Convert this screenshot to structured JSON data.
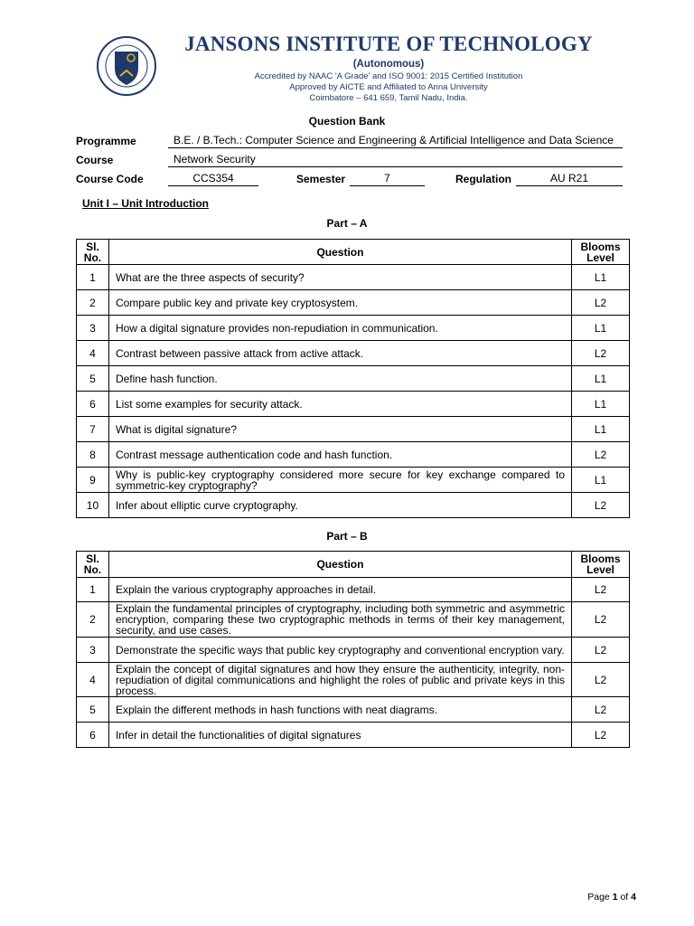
{
  "header": {
    "institution": "JANSONS INSTITUTE OF TECHNOLOGY",
    "autonomous": "(Autonomous)",
    "accreditation": "Accredited by NAAC 'A Grade' and ISO 9001: 2015 Certified Institution",
    "approval": "Approved by AICTE and Affiliated to Anna University",
    "address": "Coimbatore – 641 659, Tamil Nadu, India.",
    "logo_text": "JANSONS INSTITUTE OF TECHNOLOGY · Holistic Learning",
    "brand_color": "#1e3a6b"
  },
  "doc_title": "Question Bank",
  "info": {
    "programme_label": "Programme",
    "programme": "B.E. / B.Tech.: Computer Science and Engineering &  Artificial Intelligence and Data Science",
    "course_label": "Course",
    "course": "Network Security",
    "code_label": "Course Code",
    "code": "CCS354",
    "semester_label": "Semester",
    "semester": "7",
    "regulation_label": "Regulation",
    "regulation": "AU R21"
  },
  "unit": "Unit I – Unit Introduction",
  "columns": {
    "sl": "Sl. No.",
    "question": "Question",
    "blooms": "Blooms Level"
  },
  "part_a": {
    "title": "Part – A",
    "rows": [
      [
        "1",
        "What are the three aspects of security?",
        "L1"
      ],
      [
        "2",
        "Compare public key and private key cryptosystem.",
        "L2"
      ],
      [
        "3",
        "How a digital signature provides non-repudiation in communication.",
        "L1"
      ],
      [
        "4",
        "Contrast between passive attack from active attack.",
        "L2"
      ],
      [
        "5",
        "Define hash function.",
        "L1"
      ],
      [
        "6",
        "List some examples for security attack.",
        "L1"
      ],
      [
        "7",
        "What is digital signature?",
        "L1"
      ],
      [
        "8",
        "Contrast message authentication code and hash function.",
        "L2"
      ],
      [
        "9",
        "Why is public-key cryptography considered more secure for key exchange compared to symmetric-key cryptography?",
        "L1"
      ],
      [
        "10",
        "Infer about elliptic curve cryptography.",
        "L2"
      ]
    ]
  },
  "part_b": {
    "title": "Part – B",
    "rows": [
      [
        "1",
        "Explain the various cryptography approaches in detail.",
        "L2"
      ],
      [
        "2",
        "Explain the fundamental principles of cryptography, including both symmetric and asymmetric encryption, comparing these two cryptographic methods in terms of their key management, security, and use cases.",
        "L2"
      ],
      [
        "3",
        "Demonstrate the specific ways that public key cryptography and conventional encryption vary.",
        "L2"
      ],
      [
        "4",
        "Explain the concept of digital signatures and how they ensure the authenticity, integrity, non-repudiation of digital communications and highlight the roles of public and private keys in this process.",
        "L2"
      ],
      [
        "5",
        "Explain the different methods in hash functions with neat diagrams.",
        "L2"
      ],
      [
        "6",
        "Infer in detail the functionalities of digital signatures",
        "L2"
      ]
    ]
  },
  "footer": {
    "page_word": "Page",
    "page": "1",
    "of_word": "of",
    "total": "4"
  }
}
